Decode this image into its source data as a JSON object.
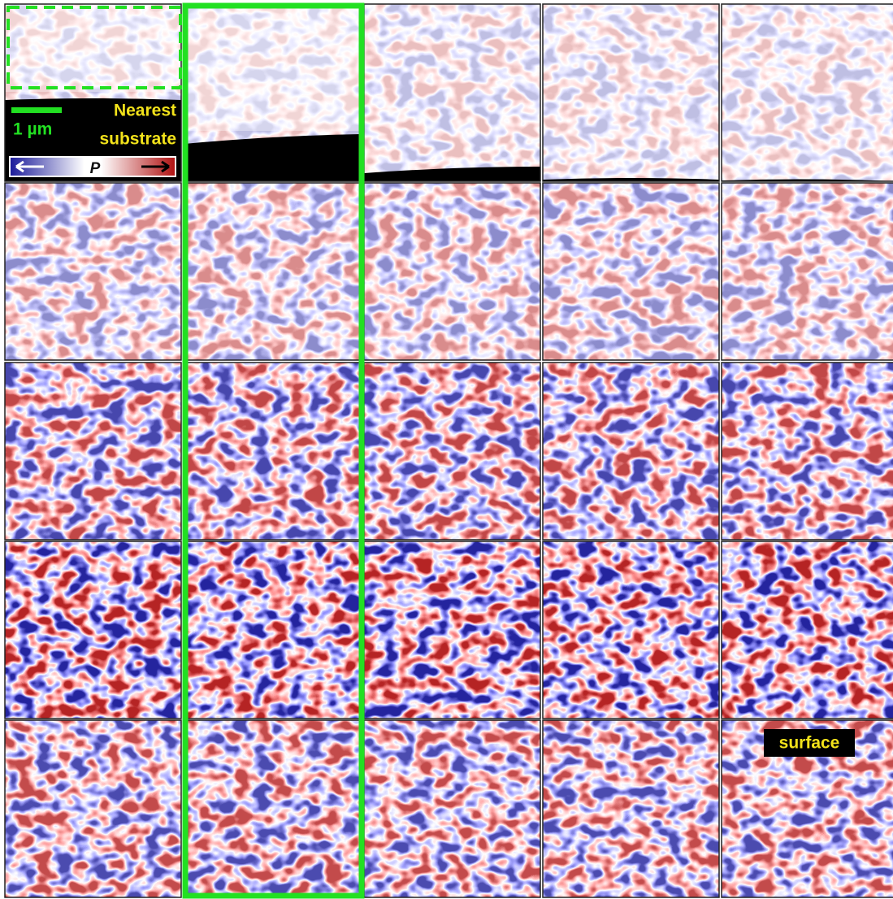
{
  "legend": {
    "scale_bar": "1 µm",
    "nearest_lines": [
      "Nearest",
      "substrate"
    ],
    "polarization_symbol": "P"
  },
  "surface_label": "surface"
}
